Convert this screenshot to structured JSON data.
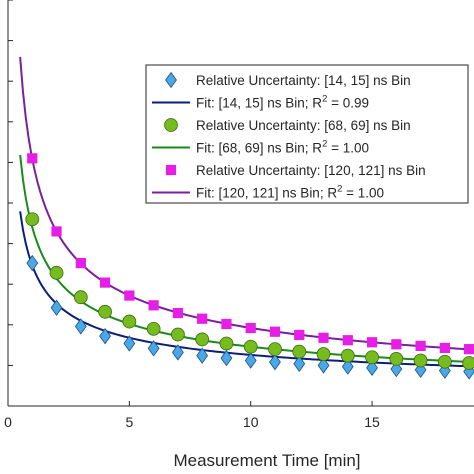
{
  "chart_data": {
    "type": "scatter",
    "title": "",
    "xlabel": "Measurement Time [min]",
    "ylabel": "",
    "xlim": [
      0,
      19.2
    ],
    "ylim": [
      0,
      1.0
    ],
    "x_ticks": [
      0,
      5,
      10,
      15
    ],
    "y_ticks": [
      0.1,
      0.2,
      0.3,
      0.4,
      0.5,
      0.6,
      0.7,
      0.8,
      0.9,
      1.0
    ],
    "grid": false,
    "legend_position": "top-right",
    "series": [
      {
        "name": "Relative Uncertainty: [14, 15] ns Bin",
        "kind": "markers",
        "marker": "diamond",
        "color": "#4aa8e8",
        "x": [
          1,
          2,
          3,
          4,
          5,
          6,
          7,
          8,
          9,
          10,
          11,
          12,
          13,
          14,
          15,
          16,
          17,
          18,
          19
        ],
        "y": [
          0.352,
          0.242,
          0.196,
          0.172,
          0.154,
          0.142,
          0.132,
          0.124,
          0.118,
          0.112,
          0.108,
          0.104,
          0.1,
          0.097,
          0.094,
          0.091,
          0.089,
          0.087,
          0.085
        ]
      },
      {
        "name": "Fit: [14, 15] ns Bin; R^2 = 0.99",
        "kind": "fit",
        "color": "#0a1f7a",
        "a": 0.322,
        "b": 0.024,
        "x_start": 0.5,
        "x_end": 19.2
      },
      {
        "name": "Relative Uncertainty: [68, 69] ns Bin",
        "kind": "markers",
        "marker": "circle",
        "color": "#77bc1f",
        "x": [
          1,
          2,
          3,
          4,
          5,
          6,
          7,
          8,
          9,
          10,
          11,
          12,
          13,
          14,
          15,
          16,
          17,
          18,
          19
        ],
        "y": [
          0.46,
          0.328,
          0.268,
          0.232,
          0.208,
          0.19,
          0.176,
          0.164,
          0.154,
          0.146,
          0.14,
          0.134,
          0.128,
          0.124,
          0.12,
          0.116,
          0.112,
          0.109,
          0.106
        ]
      },
      {
        "name": "Fit: [68, 69] ns Bin; R^2 = 1.00",
        "kind": "fit",
        "color": "#1a8a1a",
        "a": 0.43,
        "b": 0.01,
        "x_start": 0.5,
        "x_end": 19.2
      },
      {
        "name": "Relative Uncertainty: [120, 121] ns Bin",
        "kind": "markers",
        "marker": "square",
        "color": "#e61ee6",
        "x": [
          1,
          2,
          3,
          4,
          5,
          6,
          7,
          8,
          9,
          10,
          11,
          12,
          13,
          14,
          15,
          16,
          17,
          18,
          19
        ],
        "y": [
          0.61,
          0.43,
          0.352,
          0.304,
          0.272,
          0.248,
          0.229,
          0.215,
          0.202,
          0.192,
          0.183,
          0.175,
          0.168,
          0.162,
          0.157,
          0.152,
          0.148,
          0.143,
          0.14
        ]
      },
      {
        "name": "Fit: [120, 121] ns Bin; R^2 = 1.00",
        "kind": "fit",
        "color": "#7a1f9e",
        "a": 0.608,
        "b": 0.0,
        "x_start": 0.5,
        "x_end": 19.2
      }
    ],
    "legend": [
      {
        "type": "diamond",
        "color": "#4aa8e8",
        "label": "Relative Uncertainty: [14, 15] ns Bin"
      },
      {
        "type": "line",
        "color": "#0a1f7a",
        "label_prefix": "Fit: [14, 15] ns Bin; R",
        "label_sup": "2",
        "label_suffix": " = 0.99"
      },
      {
        "type": "circle",
        "color": "#77bc1f",
        "label": "Relative Uncertainty: [68, 69] ns Bin"
      },
      {
        "type": "line",
        "color": "#1a8a1a",
        "label_prefix": "Fit: [68, 69] ns Bin; R",
        "label_sup": "2",
        "label_suffix": " = 1.00"
      },
      {
        "type": "square",
        "color": "#e61ee6",
        "label": "Relative Uncertainty: [120, 121] ns Bin"
      },
      {
        "type": "line",
        "color": "#7a1f9e",
        "label_prefix": "Fit: [120, 121] ns Bin; R",
        "label_sup": "2",
        "label_suffix": " = 1.00"
      }
    ]
  }
}
